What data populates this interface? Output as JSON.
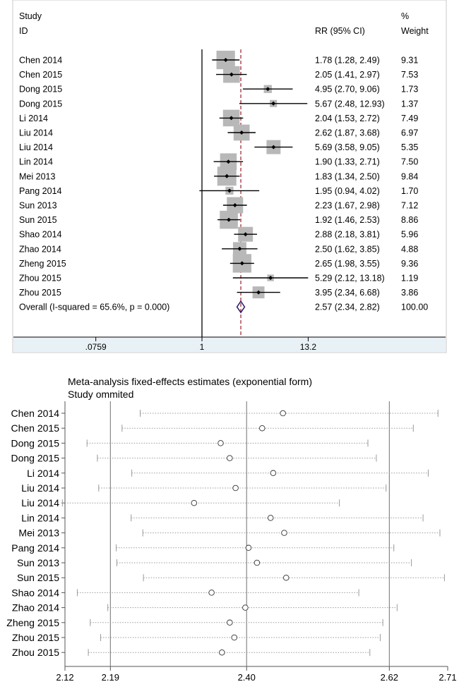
{
  "chart_data": [
    {
      "type": "forest",
      "header": {
        "study": "Study",
        "id": "ID",
        "estimate": "RR (95% CI)",
        "pct": "%",
        "weight": "Weight"
      },
      "x_ticks": [
        ".0759",
        "1",
        "13.2"
      ],
      "x_tick_values": [
        0.0759,
        1,
        13.2
      ],
      "reference_line": 1,
      "overall_line": 2.57,
      "studies": [
        {
          "label": "Chen 2014",
          "rr": 1.78,
          "lo": 1.28,
          "hi": 2.49,
          "ci_text": "1.78 (1.28, 2.49)",
          "weight": 9.31,
          "weight_text": "9.31"
        },
        {
          "label": "Chen 2015",
          "rr": 2.05,
          "lo": 1.41,
          "hi": 2.97,
          "ci_text": "2.05 (1.41, 2.97)",
          "weight": 7.53,
          "weight_text": "7.53"
        },
        {
          "label": "Dong 2015",
          "rr": 4.95,
          "lo": 2.7,
          "hi": 9.06,
          "ci_text": "4.95 (2.70, 9.06)",
          "weight": 1.73,
          "weight_text": "1.73"
        },
        {
          "label": "Dong 2015",
          "rr": 5.67,
          "lo": 2.48,
          "hi": 12.93,
          "ci_text": "5.67 (2.48, 12.93)",
          "weight": 1.37,
          "weight_text": "1.37"
        },
        {
          "label": "Li 2014",
          "rr": 2.04,
          "lo": 1.53,
          "hi": 2.72,
          "ci_text": "2.04 (1.53, 2.72)",
          "weight": 7.49,
          "weight_text": "7.49"
        },
        {
          "label": "Liu 2014",
          "rr": 2.62,
          "lo": 1.87,
          "hi": 3.68,
          "ci_text": "2.62 (1.87, 3.68)",
          "weight": 6.97,
          "weight_text": "6.97"
        },
        {
          "label": "Liu 2014",
          "rr": 5.69,
          "lo": 3.58,
          "hi": 9.05,
          "ci_text": "5.69 (3.58, 9.05)",
          "weight": 5.35,
          "weight_text": "5.35"
        },
        {
          "label": "Lin 2014",
          "rr": 1.9,
          "lo": 1.33,
          "hi": 2.71,
          "ci_text": "1.90 (1.33, 2.71)",
          "weight": 7.5,
          "weight_text": "7.50"
        },
        {
          "label": "Mei 2013",
          "rr": 1.83,
          "lo": 1.34,
          "hi": 2.5,
          "ci_text": "1.83 (1.34, 2.50)",
          "weight": 9.84,
          "weight_text": "9.84"
        },
        {
          "label": "Pang 2014",
          "rr": 1.95,
          "lo": 0.94,
          "hi": 4.02,
          "ci_text": "1.95 (0.94, 4.02)",
          "weight": 1.7,
          "weight_text": "1.70"
        },
        {
          "label": "Sun 2013",
          "rr": 2.23,
          "lo": 1.67,
          "hi": 2.98,
          "ci_text": "2.23 (1.67, 2.98)",
          "weight": 7.12,
          "weight_text": "7.12"
        },
        {
          "label": "Sun 2015",
          "rr": 1.92,
          "lo": 1.46,
          "hi": 2.53,
          "ci_text": "1.92 (1.46, 2.53)",
          "weight": 8.86,
          "weight_text": "8.86"
        },
        {
          "label": "Shao 2014",
          "rr": 2.88,
          "lo": 2.18,
          "hi": 3.81,
          "ci_text": "2.88 (2.18, 3.81)",
          "weight": 5.96,
          "weight_text": "5.96"
        },
        {
          "label": "Zhao 2014",
          "rr": 2.5,
          "lo": 1.62,
          "hi": 3.85,
          "ci_text": "2.50 (1.62, 3.85)",
          "weight": 4.88,
          "weight_text": "4.88"
        },
        {
          "label": "Zheng 2015",
          "rr": 2.65,
          "lo": 1.98,
          "hi": 3.55,
          "ci_text": "2.65 (1.98, 3.55)",
          "weight": 9.36,
          "weight_text": "9.36"
        },
        {
          "label": "Zhou 2015",
          "rr": 5.29,
          "lo": 2.12,
          "hi": 13.18,
          "ci_text": "5.29 (2.12, 13.18)",
          "weight": 1.19,
          "weight_text": "1.19"
        },
        {
          "label": "Zhou 2015",
          "rr": 3.95,
          "lo": 2.34,
          "hi": 6.68,
          "ci_text": "3.95 (2.34, 6.68)",
          "weight": 3.86,
          "weight_text": "3.86"
        }
      ],
      "overall": {
        "label": "Overall  (I-squared = 65.6%, p = 0.000)",
        "rr": 2.57,
        "lo": 2.34,
        "hi": 2.82,
        "ci_text": "2.57 (2.34, 2.82)",
        "weight_text": "100.00"
      },
      "colors": {
        "box": "#b8b8b8",
        "diamond": "#2a1a6e",
        "overall_line": "#a0303a",
        "axis_band": "#e8f1f5"
      }
    },
    {
      "type": "sensitivity",
      "title": "Meta-analysis fixed-effects estimates (exponential form)",
      "subtitle": "Study ommited",
      "xlim": [
        2.12,
        2.71
      ],
      "x_ticks": [
        2.12,
        2.19,
        2.4,
        2.62,
        2.71
      ],
      "x_tick_labels": [
        "2.12",
        "2.19",
        "2.40",
        "2.62",
        "2.71"
      ],
      "vertical_lines": [
        2.19,
        2.4,
        2.62
      ],
      "studies": [
        {
          "label": "Chen 2014",
          "est": 2.456,
          "lo": 2.236,
          "hi": 2.695
        },
        {
          "label": "Chen 2015",
          "est": 2.424,
          "lo": 2.208,
          "hi": 2.657
        },
        {
          "label": "Dong 2015",
          "est": 2.36,
          "lo": 2.154,
          "hi": 2.587
        },
        {
          "label": "Dong 2015",
          "est": 2.374,
          "lo": 2.17,
          "hi": 2.6
        },
        {
          "label": "Li 2014",
          "est": 2.441,
          "lo": 2.223,
          "hi": 2.68
        },
        {
          "label": "Liu 2014",
          "est": 2.383,
          "lo": 2.172,
          "hi": 2.615
        },
        {
          "label": "Liu 2014",
          "est": 2.319,
          "lo": 2.116,
          "hi": 2.543
        },
        {
          "label": "Lin 2014",
          "est": 2.437,
          "lo": 2.222,
          "hi": 2.672
        },
        {
          "label": "Mei 2013",
          "est": 2.458,
          "lo": 2.24,
          "hi": 2.698
        },
        {
          "label": "Pang 2014",
          "est": 2.403,
          "lo": 2.199,
          "hi": 2.627
        },
        {
          "label": "Sun 2013",
          "est": 2.416,
          "lo": 2.2,
          "hi": 2.654
        },
        {
          "label": "Sun 2015",
          "est": 2.461,
          "lo": 2.241,
          "hi": 2.705
        },
        {
          "label": "Shao 2014",
          "est": 2.346,
          "lo": 2.139,
          "hi": 2.573
        },
        {
          "label": "Zhao 2014",
          "est": 2.398,
          "lo": 2.186,
          "hi": 2.632
        },
        {
          "label": "Zheng 2015",
          "est": 2.374,
          "lo": 2.159,
          "hi": 2.61
        },
        {
          "label": "Zhou 2015",
          "est": 2.381,
          "lo": 2.175,
          "hi": 2.606
        },
        {
          "label": "Zhou 2015",
          "est": 2.362,
          "lo": 2.156,
          "hi": 2.59
        }
      ]
    }
  ]
}
